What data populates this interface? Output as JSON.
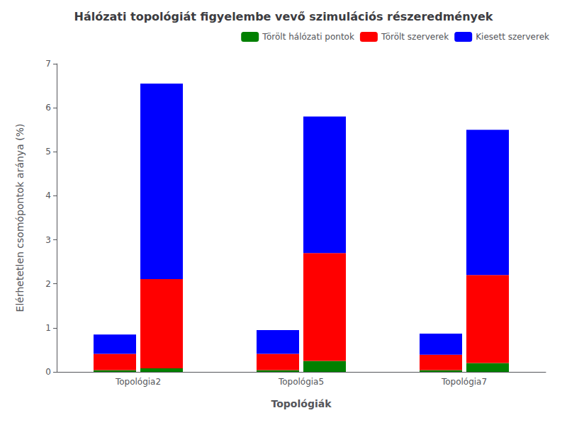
{
  "chart_data": {
    "type": "bar",
    "title": "Hálózati topológiát figyelembe vevő szimulációs részeredmények",
    "xlabel": "Topológiák",
    "ylabel": "Elérhetetlen csomópontok aránya (%)",
    "categories": [
      "Topológia2",
      "Topológia5",
      "Topológia7"
    ],
    "stacked": true,
    "series": [
      [
        {
          "color": "#008000",
          "values": [
            0.04,
            0.04,
            0.04
          ]
        },
        {
          "color": "#ff0000",
          "values": [
            0.37,
            0.37,
            0.35
          ]
        },
        {
          "color": "#0000ff",
          "values": [
            0.44,
            0.54,
            0.48
          ]
        }
      ],
      [
        {
          "name": "Törölt hálózati pontok",
          "color": "#008000",
          "values": [
            0.08,
            0.25,
            0.2
          ]
        },
        {
          "name": "Törölt szerverek",
          "color": "#ff0000",
          "values": [
            2.03,
            2.45,
            2.0
          ]
        },
        {
          "name": "Kiesett szerverek",
          "color": "#0000ff",
          "values": [
            4.44,
            3.1,
            3.3
          ]
        }
      ]
    ],
    "ylim": [
      0,
      7
    ],
    "yticks": [
      0,
      1,
      2,
      3,
      4,
      5,
      6,
      7
    ],
    "grid": false,
    "legend": "upper right"
  }
}
